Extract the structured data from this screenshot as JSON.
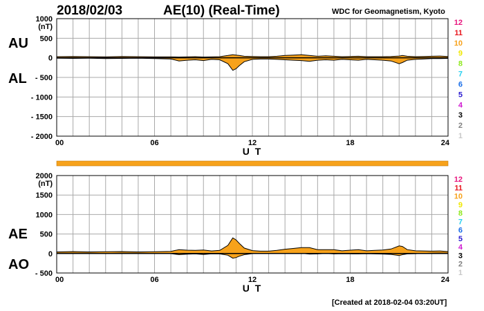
{
  "header": {
    "date": "2018/02/03",
    "title": "AE(10) (Real-Time)",
    "source": "WDC for Geomagnetism, Kyoto"
  },
  "footer": {
    "created": "[Created at 2018-02-04 03:20UT]"
  },
  "colors": {
    "fill": "#f7a21b",
    "grid": "#a8a8a8",
    "station_bar": "#f7a21b"
  },
  "station_legend": [
    {
      "label": "12",
      "color": "#e8157e"
    },
    {
      "label": "11",
      "color": "#e8151c"
    },
    {
      "label": "10",
      "color": "#f7a21b"
    },
    {
      "label": "9",
      "color": "#f0e800"
    },
    {
      "label": "8",
      "color": "#8ee81d"
    },
    {
      "label": "7",
      "color": "#26d0f0"
    },
    {
      "label": "6",
      "color": "#1a6ee8"
    },
    {
      "label": "5",
      "color": "#2a1ad0"
    },
    {
      "label": "4",
      "color": "#d01ad0"
    },
    {
      "label": "3",
      "color": "#000000"
    },
    {
      "label": "2",
      "color": "#808080"
    },
    {
      "label": "1",
      "color": "#c8c8c8"
    }
  ],
  "chart_data": [
    {
      "type": "area",
      "panel": "AU/AL",
      "side_labels": [
        "AU",
        "AL"
      ],
      "ylabel": "(nT)",
      "xlabel": "U T",
      "xlim": [
        0,
        24
      ],
      "ylim": [
        -2000,
        1000
      ],
      "yticks": [
        1000,
        500,
        0,
        -500,
        -1000,
        -1500,
        -2000
      ],
      "ytick_labels": [
        "1000",
        "500",
        "0",
        "- 500",
        "- 1000",
        "- 1500",
        "- 2000"
      ],
      "xtick_labels": [
        "00",
        "06",
        "12",
        "18",
        "24"
      ],
      "xticks": [
        0,
        6,
        12,
        18,
        24
      ],
      "grid": true,
      "series": [
        {
          "x": [
            0,
            1,
            2,
            3,
            4,
            5,
            6,
            7,
            7.5,
            8,
            8.5,
            9,
            9.5,
            10,
            10.5,
            10.8,
            11,
            11.2,
            11.5,
            12,
            12.5,
            13,
            13.5,
            14,
            14.5,
            15,
            15.5,
            16,
            16.5,
            17,
            17.5,
            18,
            18.5,
            19,
            19.5,
            20,
            20.5,
            21,
            21.2,
            21.5,
            22,
            22.5,
            23,
            23.5,
            24
          ],
          "values": [
            30,
            35,
            30,
            25,
            35,
            30,
            25,
            25,
            20,
            25,
            30,
            20,
            25,
            30,
            60,
            80,
            70,
            60,
            40,
            35,
            30,
            30,
            40,
            60,
            70,
            80,
            60,
            40,
            50,
            40,
            30,
            35,
            40,
            30,
            30,
            30,
            35,
            45,
            60,
            40,
            30,
            35,
            40,
            45,
            35
          ]
        },
        {
          "x": [
            0,
            1,
            2,
            3,
            4,
            5,
            6,
            7,
            7.5,
            8,
            8.5,
            9,
            9.5,
            10,
            10.5,
            10.8,
            11,
            11.2,
            11.5,
            12,
            12.5,
            13,
            13.5,
            14,
            14.5,
            15,
            15.5,
            16,
            16.5,
            17,
            17.5,
            18,
            18.5,
            19,
            19.5,
            20,
            20.5,
            21,
            21.2,
            21.5,
            22,
            22.5,
            23,
            23.5,
            24
          ],
          "values": [
            -10,
            -15,
            -10,
            -20,
            -15,
            -10,
            -20,
            -30,
            -80,
            -60,
            -50,
            -70,
            -40,
            -50,
            -150,
            -320,
            -280,
            -200,
            -100,
            -40,
            -30,
            -30,
            -40,
            -50,
            -60,
            -70,
            -90,
            -60,
            -50,
            -60,
            -40,
            -50,
            -60,
            -40,
            -50,
            -60,
            -80,
            -150,
            -120,
            -60,
            -40,
            -30,
            -20,
            -20,
            -15
          ]
        }
      ]
    },
    {
      "type": "area",
      "panel": "AE/AO",
      "side_labels": [
        "AE",
        "AO"
      ],
      "ylabel": "(nT)",
      "xlabel": "U T",
      "xlim": [
        0,
        24
      ],
      "ylim": [
        -500,
        2000
      ],
      "yticks": [
        2000,
        1500,
        1000,
        500,
        0,
        -500
      ],
      "ytick_labels": [
        "2000",
        "1500",
        "1000",
        "500",
        "0",
        "- 500"
      ],
      "xtick_labels": [
        "00",
        "06",
        "12",
        "18",
        "24"
      ],
      "xticks": [
        0,
        6,
        12,
        18,
        24
      ],
      "grid": true,
      "series": [
        {
          "x": [
            0,
            1,
            2,
            3,
            4,
            5,
            6,
            7,
            7.5,
            8,
            8.5,
            9,
            9.5,
            10,
            10.5,
            10.8,
            11,
            11.2,
            11.5,
            12,
            12.5,
            13,
            13.5,
            14,
            14.5,
            15,
            15.5,
            16,
            16.5,
            17,
            17.5,
            18,
            18.5,
            19,
            19.5,
            20,
            20.5,
            21,
            21.2,
            21.5,
            22,
            22.5,
            23,
            23.5,
            24
          ],
          "values": [
            40,
            50,
            40,
            45,
            50,
            40,
            45,
            55,
            100,
            85,
            80,
            90,
            65,
            80,
            210,
            400,
            350,
            260,
            140,
            75,
            60,
            60,
            80,
            110,
            130,
            150,
            150,
            100,
            100,
            100,
            70,
            85,
            100,
            70,
            80,
            90,
            115,
            195,
            180,
            100,
            70,
            65,
            60,
            65,
            50
          ]
        },
        {
          "x": [
            0,
            1,
            2,
            3,
            4,
            5,
            6,
            7,
            7.5,
            8,
            8.5,
            9,
            9.5,
            10,
            10.5,
            10.8,
            11,
            11.2,
            11.5,
            12,
            12.5,
            13,
            13.5,
            14,
            14.5,
            15,
            15.5,
            16,
            16.5,
            17,
            17.5,
            18,
            18.5,
            19,
            19.5,
            20,
            20.5,
            21,
            21.2,
            21.5,
            22,
            22.5,
            23,
            23.5,
            24
          ],
          "values": [
            10,
            10,
            10,
            3,
            10,
            10,
            3,
            -3,
            -30,
            -18,
            -10,
            -25,
            -8,
            -10,
            -45,
            -120,
            -105,
            -70,
            -30,
            -3,
            0,
            0,
            0,
            5,
            5,
            5,
            -15,
            -10,
            0,
            -10,
            -5,
            -8,
            -10,
            -5,
            -10,
            -15,
            -23,
            -53,
            -30,
            -10,
            -5,
            3,
            10,
            13,
            10
          ]
        }
      ]
    }
  ]
}
